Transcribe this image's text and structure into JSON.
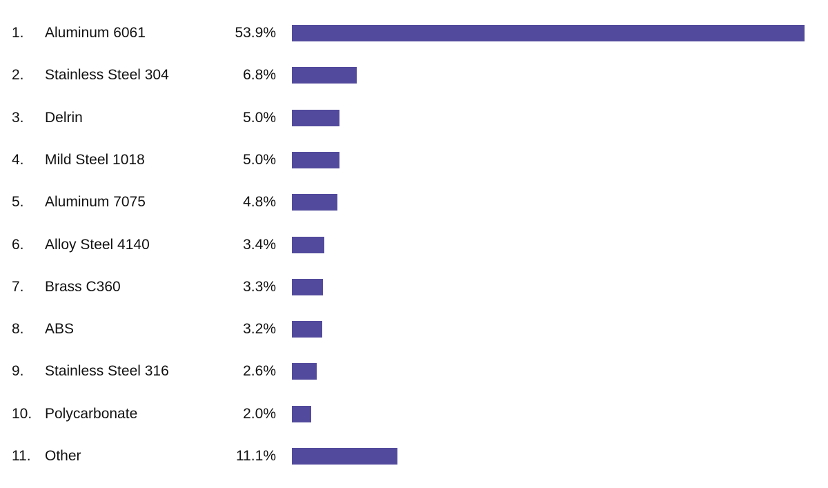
{
  "chart_data": {
    "type": "bar",
    "orientation": "horizontal",
    "title": "",
    "xlabel": "",
    "ylabel": "",
    "bar_color": "#524a9c",
    "grid": false,
    "xlim": [
      0,
      53.9
    ],
    "ranks": [
      "1.",
      "2.",
      "3.",
      "4.",
      "5.",
      "6.",
      "7.",
      "8.",
      "9.",
      "10.",
      "11."
    ],
    "categories": [
      "Aluminum 6061",
      "Stainless Steel 304",
      "Delrin",
      "Mild Steel 1018",
      "Aluminum 7075",
      "Alloy Steel 4140",
      "Brass C360",
      "ABS",
      "Stainless Steel 316",
      "Polycarbonate",
      "Other"
    ],
    "values": [
      53.9,
      6.8,
      5.0,
      5.0,
      4.8,
      3.4,
      3.3,
      3.2,
      2.6,
      2.0,
      11.1
    ],
    "value_labels": [
      "53.9%",
      "6.8%",
      "5.0%",
      "5.0%",
      "4.8%",
      "3.4%",
      "3.3%",
      "3.2%",
      "2.6%",
      "2.0%",
      "11.1%"
    ]
  }
}
